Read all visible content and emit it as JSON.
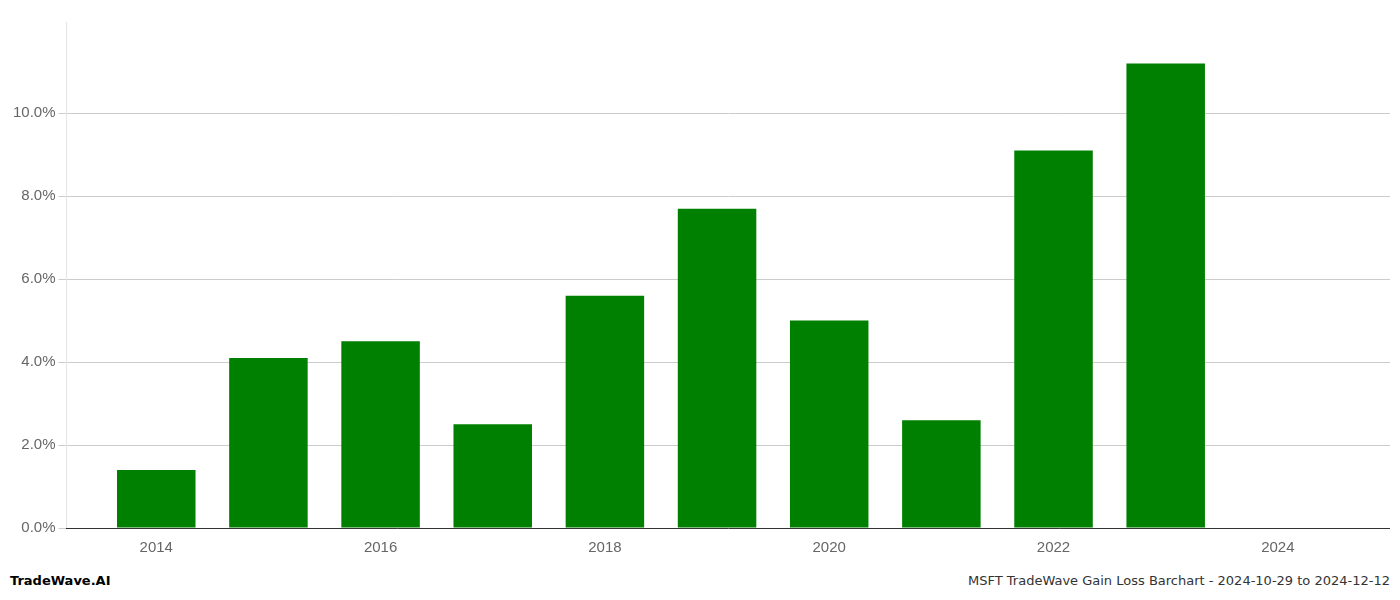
{
  "chart_data": {
    "type": "bar",
    "x": [
      2014,
      2015,
      2016,
      2017,
      2018,
      2019,
      2020,
      2021,
      2022,
      2023
    ],
    "values": [
      0.014,
      0.041,
      0.045,
      0.025,
      0.056,
      0.077,
      0.05,
      0.026,
      0.091,
      0.112
    ],
    "color": "#008000",
    "xlim": [
      2013.2,
      2025.0
    ],
    "xticks": [
      2014,
      2016,
      2018,
      2020,
      2022,
      2024
    ],
    "ylim": [
      0,
      0.122
    ],
    "yticks": [
      {
        "value": 0.0,
        "label": "0.0%"
      },
      {
        "value": 0.02,
        "label": "2.0%"
      },
      {
        "value": 0.04,
        "label": "4.0%"
      },
      {
        "value": 0.06,
        "label": "6.0%"
      },
      {
        "value": 0.08,
        "label": "8.0%"
      },
      {
        "value": 0.1,
        "label": "10.0%"
      }
    ],
    "grid": true,
    "annotations": [
      "TradeWave.AI",
      "MSFT TradeWave Gain Loss Barchart - 2024-10-29 to 2024-12-12"
    ]
  }
}
